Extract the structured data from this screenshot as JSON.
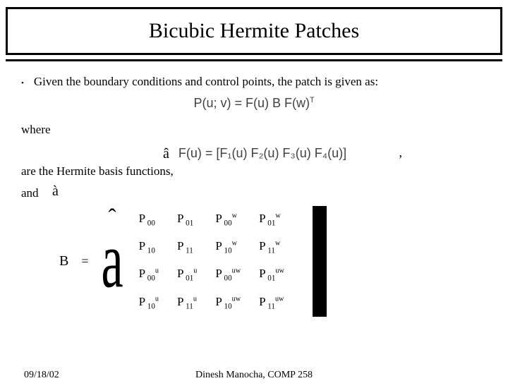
{
  "title": "Bicubic Hermite Patches",
  "bullet_text": "Given the boundary conditions and control points, the patch is given as:",
  "equation_main": "P(u; v)  =  F(u)  B  F(w)",
  "equation_main_sup": "T",
  "where_label": "where",
  "fu_equation": "F(u) = [F₁(u)  F₂(u)  F₃(u)  F₄(u)]",
  "basis_text": "are the Hermite basis functions,",
  "and_label": "and",
  "matrix_label": "B",
  "eq_sign": "=",
  "matrix": {
    "rows": [
      [
        {
          "base": "P",
          "sub": "00",
          "sup": ""
        },
        {
          "base": "P",
          "sub": "01",
          "sup": ""
        },
        {
          "base": "P",
          "sub": "00",
          "sup": "w"
        },
        {
          "base": "P",
          "sub": "01",
          "sup": "w"
        }
      ],
      [
        {
          "base": "P",
          "sub": "10",
          "sup": ""
        },
        {
          "base": "P",
          "sub": "11",
          "sup": ""
        },
        {
          "base": "P",
          "sub": "10",
          "sup": "w"
        },
        {
          "base": "P",
          "sub": "11",
          "sup": "w"
        }
      ],
      [
        {
          "base": "P",
          "sub": "00",
          "sup": "u"
        },
        {
          "base": "P",
          "sub": "01",
          "sup": "u"
        },
        {
          "base": "P",
          "sub": "00",
          "sup": "uw"
        },
        {
          "base": "P",
          "sub": "01",
          "sup": "uw"
        }
      ],
      [
        {
          "base": "P",
          "sub": "10",
          "sup": "u"
        },
        {
          "base": "P",
          "sub": "11",
          "sup": "u"
        },
        {
          "base": "P",
          "sub": "10",
          "sup": "uw"
        },
        {
          "base": "P",
          "sub": "11",
          "sup": "uw"
        }
      ]
    ]
  },
  "footer": {
    "date": "09/18/02",
    "attribution": "Dinesh Manocha, COMP 258"
  },
  "colors": {
    "border": "#000000",
    "text": "#000000",
    "eq_text": "#414141",
    "background": "#ffffff"
  },
  "fonts": {
    "title_size_pt": 30,
    "body_size_pt": 17,
    "footer_size_pt": 14
  }
}
